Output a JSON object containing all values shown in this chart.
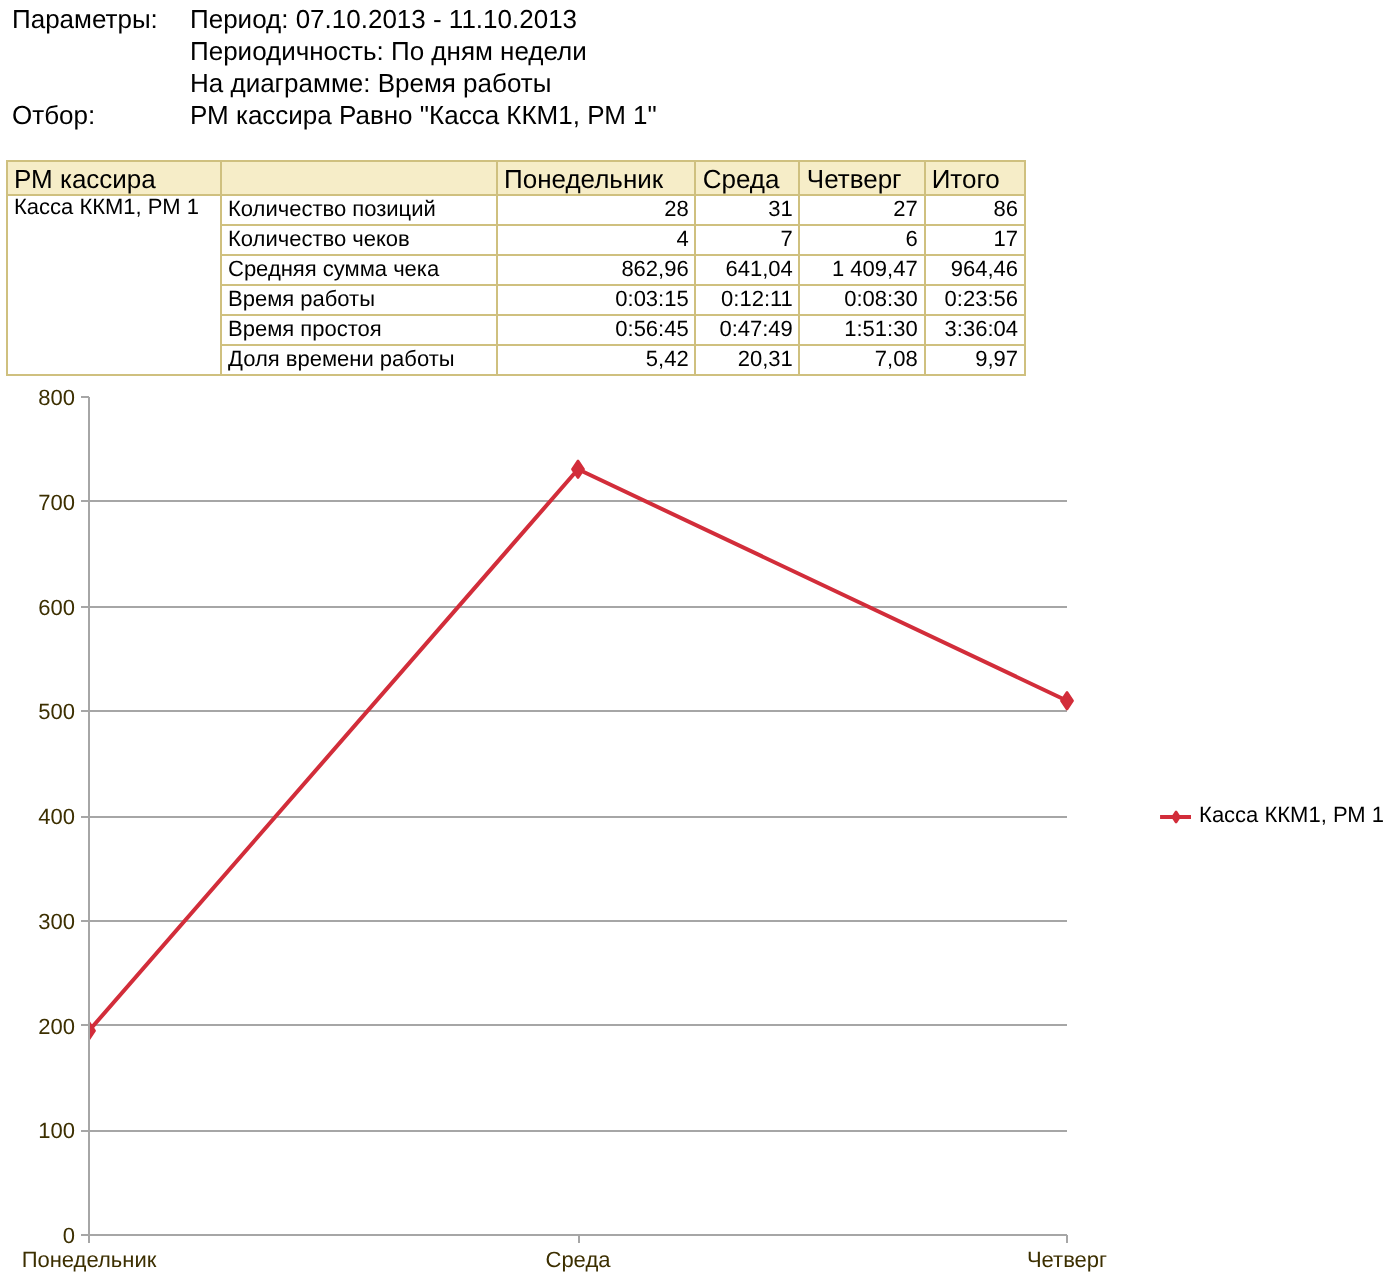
{
  "chart_data": [
    {
      "type": "other",
      "y_categories": [
        "Параметры:",
        null,
        null,
        "Отбор:"
      ],
      "cell_labels": [
        [
          "Период: 07.10.2013 - 11.10.2013"
        ],
        [
          "Периодичность: По дням недели"
        ],
        [
          "На диаграмме: Время работы"
        ],
        [
          "РМ кассира Равно \"Касса ККМ1, РМ 1\""
        ]
      ]
    },
    {
      "type": "other",
      "ylabel": "РМ кассира",
      "categories": [
        "Понедельник",
        "Среда",
        "Четверг",
        "Итого"
      ],
      "y_categories": [
        "Касса ККМ1, РМ 1",
        null,
        null,
        null,
        null,
        null
      ],
      "y2_categories": [
        "Количество позиций",
        "Количество чеков",
        "Средняя сумма чека",
        "Время работы",
        "Время простоя",
        "Доля времени работы"
      ],
      "cell_labels": [
        [
          "28",
          "31",
          "27",
          "86"
        ],
        [
          "4",
          "7",
          "6",
          "17"
        ],
        [
          "862,96",
          "641,04",
          "1 409,47",
          "964,46"
        ],
        [
          "0:03:15",
          "0:12:11",
          "0:08:30",
          "0:23:56"
        ],
        [
          "0:56:45",
          "0:47:49",
          "1:51:30",
          "3:36:04"
        ],
        [
          "5,42",
          "20,31",
          "7,08",
          "9,97"
        ]
      ]
    },
    {
      "type": "line",
      "categories": [
        "Понедельник",
        "Среда",
        "Четверг"
      ],
      "series": [
        {
          "name": "Касса ККМ1, РМ 1",
          "color": "#d22d3a",
          "values": [
            195,
            731,
            510
          ]
        }
      ],
      "ylim": [
        0,
        800
      ],
      "yticks": [
        0,
        100,
        200,
        300,
        400,
        500,
        600,
        700,
        800
      ],
      "grid": "y",
      "legend": "right",
      "marker": "diamond",
      "line_style": "solid"
    }
  ]
}
